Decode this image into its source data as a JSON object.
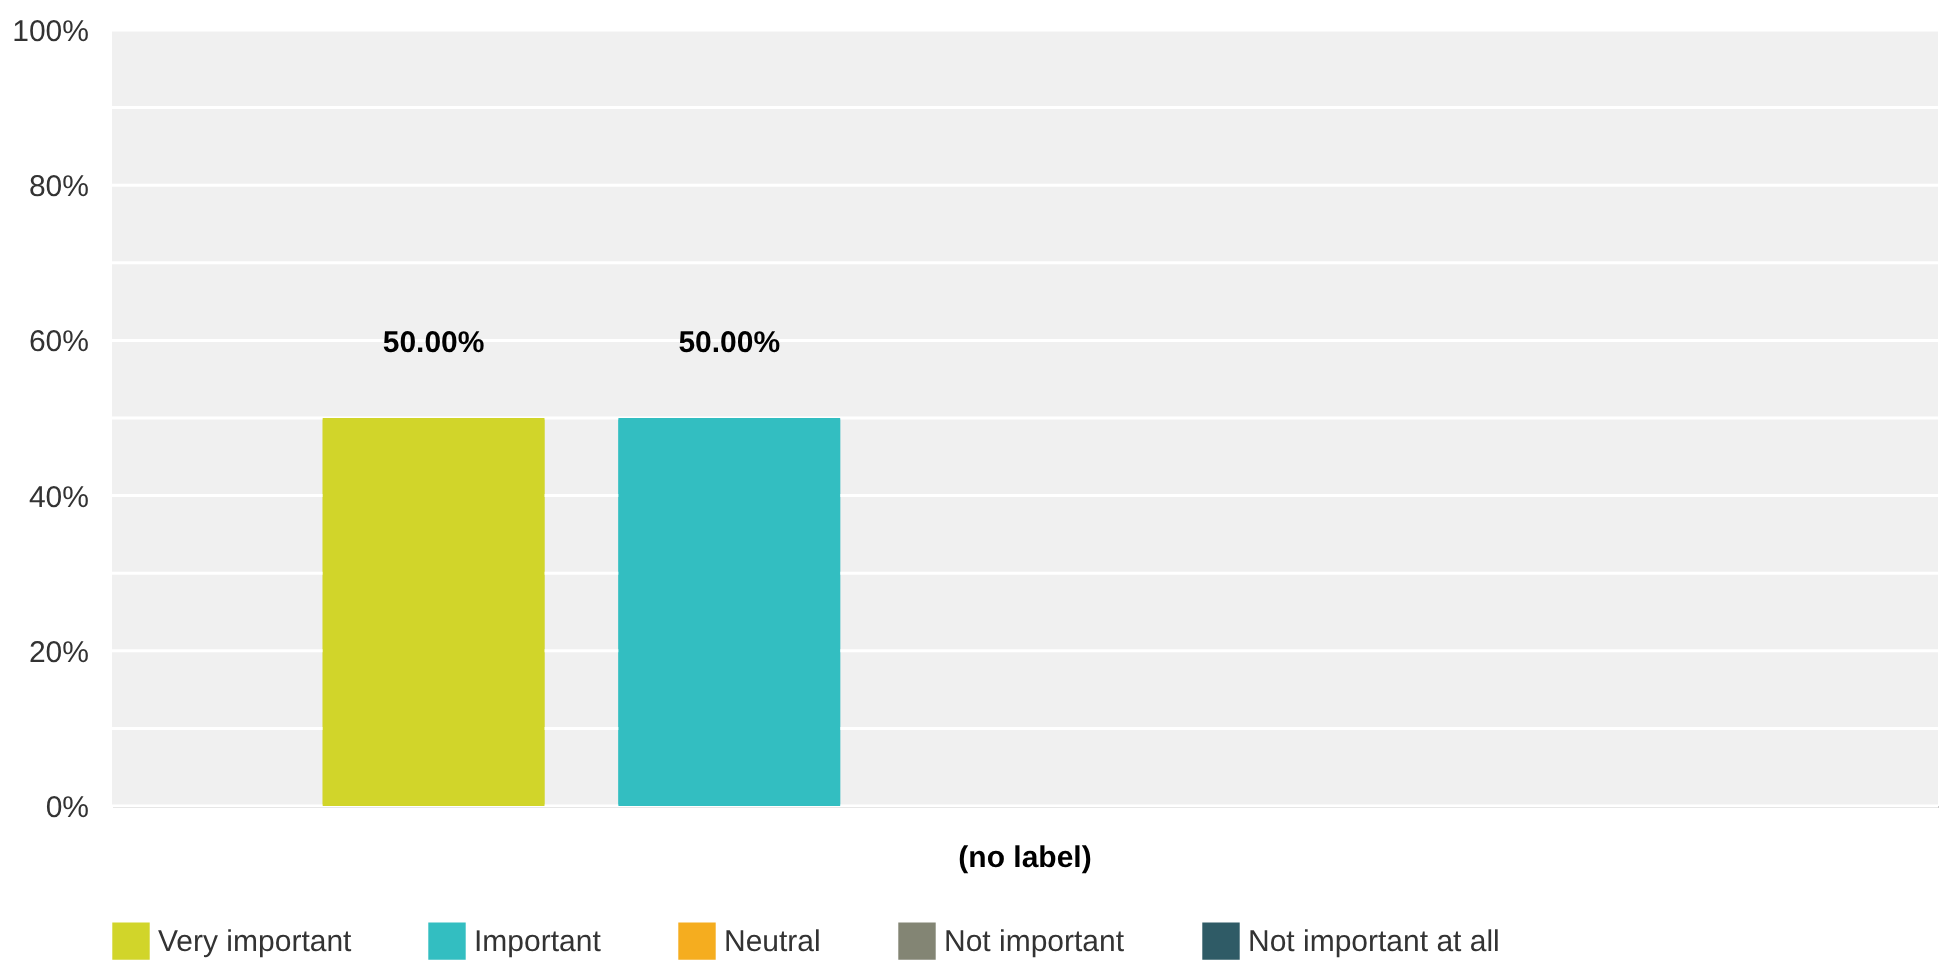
{
  "chart_data": {
    "type": "bar",
    "categories": [
      "(no label)"
    ],
    "series": [
      {
        "name": "Very important",
        "color": "#d1d52a",
        "values": [
          50
        ],
        "value_labels": [
          "50.00%"
        ]
      },
      {
        "name": "Important",
        "color": "#33bec1",
        "values": [
          50
        ],
        "value_labels": [
          "50.00%"
        ]
      },
      {
        "name": "Neutral",
        "color": "#f5ad1f",
        "values": [
          0
        ],
        "value_labels": [
          null
        ]
      },
      {
        "name": "Not important",
        "color": "#838574",
        "values": [
          0
        ],
        "value_labels": [
          null
        ]
      },
      {
        "name": "Not important at all",
        "color": "#2f5b66",
        "values": [
          0
        ],
        "value_labels": [
          null
        ]
      }
    ],
    "ylim": [
      0,
      100
    ],
    "yticks": [
      {
        "value": 0,
        "label": "0%"
      },
      {
        "value": 10,
        "label": null
      },
      {
        "value": 20,
        "label": "20%"
      },
      {
        "value": 30,
        "label": null
      },
      {
        "value": 40,
        "label": "40%"
      },
      {
        "value": 50,
        "label": null
      },
      {
        "value": 60,
        "label": "60%"
      },
      {
        "value": 70,
        "label": null
      },
      {
        "value": 80,
        "label": "80%"
      },
      {
        "value": 90,
        "label": null
      },
      {
        "value": 100,
        "label": "100%"
      }
    ],
    "grid": "y",
    "legend": "bottom"
  }
}
